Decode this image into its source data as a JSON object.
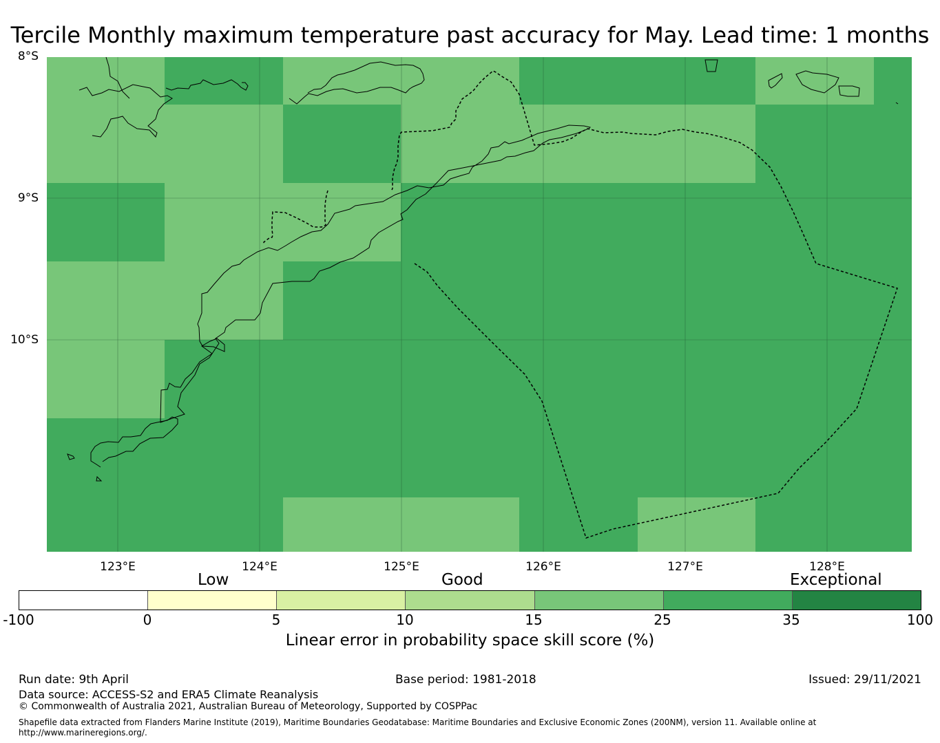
{
  "title": "Tercile Monthly maximum temperature past accuracy for May. Lead time: 1 months",
  "map": {
    "lat_labels": [
      "8°S",
      "9°S",
      "10°S"
    ],
    "lon_labels": [
      "123°E",
      "124°E",
      "125°E",
      "126°E",
      "127°E",
      "128°E"
    ],
    "colors": {
      "good_15_25": "#78c679",
      "good_25_35": "#41ab5d",
      "coast": "#000000",
      "eez_boundary": "#000000",
      "grid": "#1f4d2e"
    }
  },
  "colorbar": {
    "categories": [
      "Low",
      "Good",
      "Exceptional"
    ],
    "ticks": [
      "-100",
      "0",
      "5",
      "10",
      "15",
      "25",
      "35",
      "100"
    ],
    "colors": [
      "#ffffff",
      "#ffffcc",
      "#d9f0a3",
      "#addd8e",
      "#78c679",
      "#41ab5d",
      "#238443"
    ],
    "label": "Linear error in probability space skill score (%)"
  },
  "footer": {
    "run_date": "Run date: 9th April",
    "base_period": "Base period: 1981-2018",
    "issued": "Issued: 29/11/2021",
    "data_source": "Data source: ACCESS-S2 and ERA5 Climate Reanalysis",
    "copyright": "© Commonwealth of Australia 2021, Australian Bureau of Meteorology, Supported by COSPPac",
    "shapefile": "Shapefile data extracted from Flanders Marine Institute (2019), Maritime Boundaries Geodatabase: Maritime Boundaries and Exclusive Economic Zones (200NM), version 11. Available online at",
    "url": "http://www.marineregions.org/."
  }
}
